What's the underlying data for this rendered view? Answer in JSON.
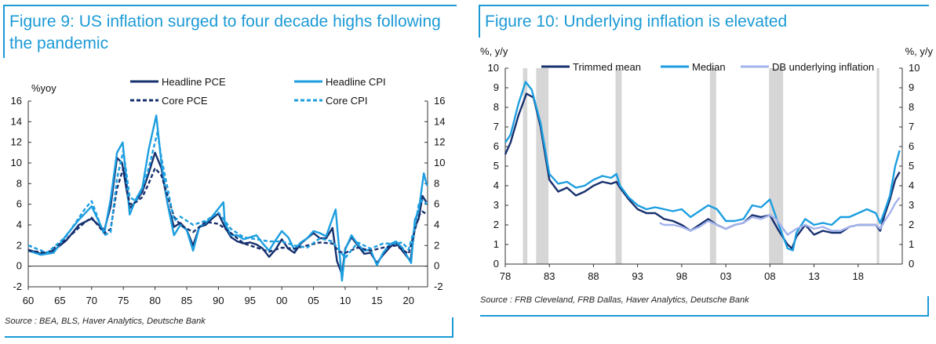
{
  "left": {
    "title": "Figure 9: US inflation surged to four decade highs following the pandemic",
    "source": "Source : BEA, BLS, Haver Analytics, Deutsche Bank"
  },
  "right": {
    "title": "Figure 10: Underlying inflation is elevated",
    "source": "Source : FRB Cleveland, FRB Dallas, Haver Analytics, Deutsche Bank"
  },
  "colors": {
    "accent": "#1b9ad6",
    "navy": "#17306e",
    "bright_blue": "#1c9ee0",
    "light_blue": "#a3b3ec",
    "recession": "#d6d6d6"
  },
  "chart_data": [
    {
      "type": "line",
      "title": "Figure 9: US inflation surged to four decade highs following the pandemic",
      "ylabel": "%yoy",
      "xlabel": "",
      "xlim": [
        1960,
        2023
      ],
      "ylim": [
        -2,
        16
      ],
      "x_ticks": [
        1960,
        1965,
        1970,
        1975,
        1980,
        1985,
        1990,
        1995,
        2000,
        2005,
        2010,
        2015,
        2020
      ],
      "x_tick_labels": [
        "60",
        "65",
        "70",
        "75",
        "80",
        "85",
        "90",
        "95",
        "00",
        "05",
        "10",
        "15",
        "20"
      ],
      "y_ticks": [
        -2,
        0,
        2,
        4,
        6,
        8,
        10,
        12,
        14,
        16
      ],
      "y_tick_labels": [
        "-2",
        "0",
        "2",
        "4",
        "6",
        "8",
        "10",
        "12",
        "14",
        "16"
      ],
      "legend": "top",
      "series": [
        {
          "name": "Headline PCE",
          "style": "solid",
          "color": "#17306e",
          "x": [
            1960,
            1962,
            1964,
            1966,
            1968,
            1970,
            1972,
            1973,
            1974,
            1974.8,
            1976,
            1977,
            1978,
            1979,
            1980,
            1981,
            1982,
            1983,
            1984,
            1985,
            1986,
            1987,
            1988,
            1989,
            1990,
            1991,
            1992,
            1993,
            1994,
            1995,
            1996,
            1997,
            1998,
            1999,
            2000,
            2001,
            2002,
            2003,
            2004,
            2005,
            2006,
            2007,
            2008,
            2008.7,
            2009.5,
            2010,
            2011,
            2012,
            2013,
            2014,
            2015,
            2016,
            2017,
            2018,
            2019,
            2020.3,
            2021,
            2021.6,
            2022.2,
            2022.8
          ],
          "y": [
            1.6,
            1.2,
            1.5,
            2.5,
            4.0,
            4.6,
            3.5,
            5.8,
            10.5,
            10.0,
            5.6,
            6.3,
            7.2,
            9.0,
            11.0,
            9.5,
            6.0,
            3.8,
            4.2,
            3.5,
            2.0,
            3.8,
            4.0,
            4.6,
            5.1,
            3.8,
            2.8,
            2.4,
            2.2,
            2.3,
            2.1,
            1.7,
            0.9,
            1.6,
            2.6,
            1.7,
            1.3,
            2.2,
            2.7,
            3.2,
            2.7,
            2.7,
            3.7,
            0.5,
            -0.8,
            1.7,
            2.8,
            2.0,
            1.2,
            1.3,
            0.3,
            1.1,
            1.8,
            2.3,
            1.5,
            0.5,
            3.8,
            4.6,
            6.8,
            6.2
          ]
        },
        {
          "name": "Headline CPI",
          "style": "solid",
          "color": "#1c9ee0",
          "x": [
            1960,
            1962,
            1964,
            1966,
            1968,
            1970,
            1972,
            1973,
            1974,
            1974.9,
            1976,
            1977,
            1978,
            1979,
            1980.2,
            1981,
            1982,
            1983,
            1984,
            1985,
            1986,
            1987,
            1988,
            1989,
            1990.8,
            1991,
            1992,
            1993,
            1994,
            1995,
            1996,
            1997,
            1998,
            1999,
            2000,
            2001,
            2002,
            2003,
            2004,
            2005,
            2006,
            2007,
            2008.5,
            2009.5,
            2010,
            2011,
            2012,
            2013,
            2014,
            2015,
            2016,
            2017,
            2018,
            2019,
            2020.4,
            2021,
            2021.6,
            2022.4,
            2022.9
          ],
          "y": [
            1.5,
            1.1,
            1.3,
            3.0,
            4.5,
            5.8,
            3.2,
            6.5,
            11.0,
            12.0,
            5.0,
            6.5,
            7.6,
            11.3,
            14.6,
            10.0,
            6.0,
            3.0,
            4.0,
            3.5,
            1.5,
            3.8,
            4.2,
            4.8,
            6.2,
            4.2,
            3.0,
            3.0,
            2.6,
            2.8,
            3.0,
            2.2,
            1.5,
            2.5,
            3.4,
            2.8,
            1.6,
            2.3,
            2.7,
            3.4,
            3.2,
            2.9,
            5.5,
            -1.4,
            1.6,
            3.0,
            2.1,
            1.5,
            1.6,
            0.1,
            1.3,
            2.1,
            2.4,
            1.8,
            0.3,
            4.5,
            5.4,
            9.0,
            7.8
          ]
        },
        {
          "name": "Core PCE",
          "style": "dashed",
          "color": "#17306e",
          "x": [
            1960,
            1963,
            1966,
            1969,
            1970,
            1972,
            1973,
            1974,
            1975,
            1976,
            1977,
            1978,
            1979,
            1980,
            1981,
            1982,
            1983,
            1984,
            1986,
            1988,
            1990,
            1992,
            1994,
            1996,
            1998,
            2000,
            2002,
            2004,
            2006,
            2008,
            2009,
            2010,
            2012,
            2014,
            2016,
            2018,
            2019,
            2020,
            2021,
            2021.6,
            2022.2,
            2022.9
          ],
          "y": [
            1.5,
            1.3,
            2.6,
            4.3,
            4.7,
            3.2,
            3.6,
            7.5,
            9.5,
            6.0,
            6.2,
            6.7,
            8.0,
            9.5,
            8.8,
            6.8,
            4.8,
            4.0,
            3.3,
            4.3,
            4.1,
            3.2,
            2.2,
            1.8,
            1.4,
            1.8,
            1.7,
            2.0,
            2.3,
            2.2,
            1.4,
            1.3,
            1.8,
            1.5,
            1.8,
            2.0,
            1.6,
            1.2,
            3.5,
            4.9,
            5.3,
            5.0
          ]
        },
        {
          "name": "Core CPI",
          "style": "dashed",
          "color": "#1c9ee0",
          "x": [
            1960,
            1963,
            1966,
            1969,
            1970,
            1972,
            1973,
            1974,
            1975,
            1976,
            1977,
            1978,
            1979,
            1980.4,
            1981,
            1982,
            1983,
            1984,
            1986,
            1988,
            1990,
            1992,
            1994,
            1996,
            1998,
            2000,
            2002,
            2004,
            2006,
            2008,
            2009,
            2010,
            2012,
            2014,
            2016,
            2018,
            2019,
            2020,
            2021,
            2021.6,
            2022.2,
            2022.9
          ],
          "y": [
            2.0,
            1.3,
            2.9,
            5.6,
            6.3,
            3.0,
            3.3,
            8.5,
            11.2,
            6.7,
            6.3,
            7.5,
            9.5,
            13.0,
            10.5,
            7.5,
            4.4,
            4.8,
            4.0,
            4.4,
            5.2,
            3.6,
            2.8,
            2.6,
            2.4,
            2.4,
            2.0,
            1.8,
            2.7,
            2.4,
            1.6,
            0.8,
            2.3,
            1.7,
            2.2,
            2.2,
            2.3,
            1.6,
            3.8,
            6.0,
            6.4,
            6.0
          ]
        }
      ]
    },
    {
      "type": "line",
      "title": "Figure 10: Underlying inflation is elevated",
      "ylabel": "%, y/y",
      "ylabel_right": "%, y/y",
      "xlabel": "",
      "xlim": [
        1978,
        2023
      ],
      "ylim": [
        0,
        10
      ],
      "x_ticks": [
        1978,
        1983,
        1988,
        1993,
        1998,
        2003,
        2008,
        2013,
        2018
      ],
      "x_tick_labels": [
        "78",
        "83",
        "88",
        "93",
        "98",
        "03",
        "08",
        "13",
        "18"
      ],
      "y_ticks": [
        0,
        1,
        2,
        3,
        4,
        5,
        6,
        7,
        8,
        9,
        10
      ],
      "y_tick_labels": [
        "0",
        "1",
        "2",
        "3",
        "4",
        "5",
        "6",
        "7",
        "8",
        "9",
        "10"
      ],
      "legend": "top",
      "recessions": [
        [
          1980.0,
          1980.5
        ],
        [
          1981.5,
          1982.9
        ],
        [
          1990.5,
          1991.2
        ],
        [
          2001.2,
          2001.9
        ],
        [
          2007.9,
          2009.5
        ],
        [
          2020.1,
          2020.4
        ]
      ],
      "series": [
        {
          "name": "Trimmed mean",
          "color": "#17306e",
          "x": [
            1978,
            1978.6,
            1979.5,
            1980.4,
            1981.2,
            1982,
            1983,
            1984,
            1985,
            1986,
            1987,
            1988,
            1989,
            1990,
            1990.6,
            1991,
            1992,
            1993,
            1994,
            1995,
            1996,
            1997,
            1998,
            1999,
            2000,
            2001,
            2002,
            2003,
            2004,
            2005,
            2006,
            2007,
            2008,
            2009,
            2010,
            2010.5,
            2011,
            2012,
            2013,
            2014,
            2015,
            2016,
            2017,
            2018,
            2019,
            2020,
            2020.5,
            2021,
            2021.6,
            2022.2,
            2022.7
          ],
          "y": [
            5.6,
            6.2,
            7.6,
            8.7,
            8.5,
            7.0,
            4.3,
            3.7,
            3.9,
            3.5,
            3.7,
            4.0,
            4.2,
            4.1,
            4.2,
            3.9,
            3.3,
            2.8,
            2.6,
            2.6,
            2.3,
            2.2,
            2.0,
            1.7,
            2.0,
            2.3,
            2.0,
            1.8,
            2.0,
            2.1,
            2.5,
            2.4,
            2.5,
            1.7,
            1.0,
            0.8,
            1.4,
            2.0,
            1.5,
            1.7,
            1.6,
            1.6,
            1.9,
            2.0,
            2.0,
            2.0,
            1.7,
            2.5,
            3.3,
            4.3,
            4.7
          ]
        },
        {
          "name": "Median",
          "color": "#1c9ee0",
          "x": [
            1978,
            1978.6,
            1979.5,
            1980.3,
            1981,
            1982,
            1983,
            1984,
            1985,
            1986,
            1987,
            1988,
            1989,
            1990,
            1990.6,
            1991,
            1992,
            1993,
            1994,
            1995,
            1996,
            1997,
            1998,
            1999,
            2000,
            2001,
            2002,
            2003,
            2004,
            2005,
            2006,
            2007,
            2008,
            2009,
            2010,
            2010.6,
            2011,
            2012,
            2013,
            2014,
            2015,
            2016,
            2017,
            2018,
            2019,
            2020,
            2020.5,
            2021,
            2021.6,
            2022.2,
            2022.7
          ],
          "y": [
            6.2,
            6.6,
            8.2,
            9.3,
            8.9,
            7.2,
            4.6,
            4.1,
            4.2,
            3.9,
            4.0,
            4.3,
            4.5,
            4.4,
            4.6,
            4.0,
            3.4,
            3.0,
            2.8,
            2.9,
            2.8,
            2.7,
            2.8,
            2.4,
            2.7,
            3.0,
            2.8,
            2.2,
            2.2,
            2.3,
            3.0,
            2.9,
            3.3,
            2.0,
            0.8,
            0.7,
            1.6,
            2.3,
            2.0,
            2.1,
            2.0,
            2.4,
            2.4,
            2.6,
            2.8,
            2.6,
            2.1,
            2.7,
            3.5,
            5.0,
            5.8
          ]
        },
        {
          "name": "DB underlying inflation",
          "color": "#a3b3ec",
          "x": [
            1995.5,
            1996,
            1997,
            1998,
            1999,
            2000,
            2001,
            2002,
            2003,
            2004,
            2005,
            2006,
            2007,
            2008,
            2008.7,
            2009.5,
            2010,
            2011,
            2012,
            2013,
            2014,
            2015,
            2016,
            2017,
            2018,
            2019,
            2020,
            2020.5,
            2021,
            2021.6,
            2022.2,
            2022.7
          ],
          "y": [
            2.1,
            2.0,
            2.0,
            1.9,
            1.7,
            1.9,
            2.2,
            2.0,
            1.8,
            2.0,
            2.1,
            2.4,
            2.3,
            2.5,
            2.3,
            1.8,
            1.5,
            1.8,
            2.0,
            1.8,
            1.9,
            1.7,
            1.7,
            1.9,
            2.0,
            2.0,
            2.0,
            1.8,
            2.2,
            2.6,
            3.1,
            3.4
          ]
        }
      ]
    }
  ]
}
